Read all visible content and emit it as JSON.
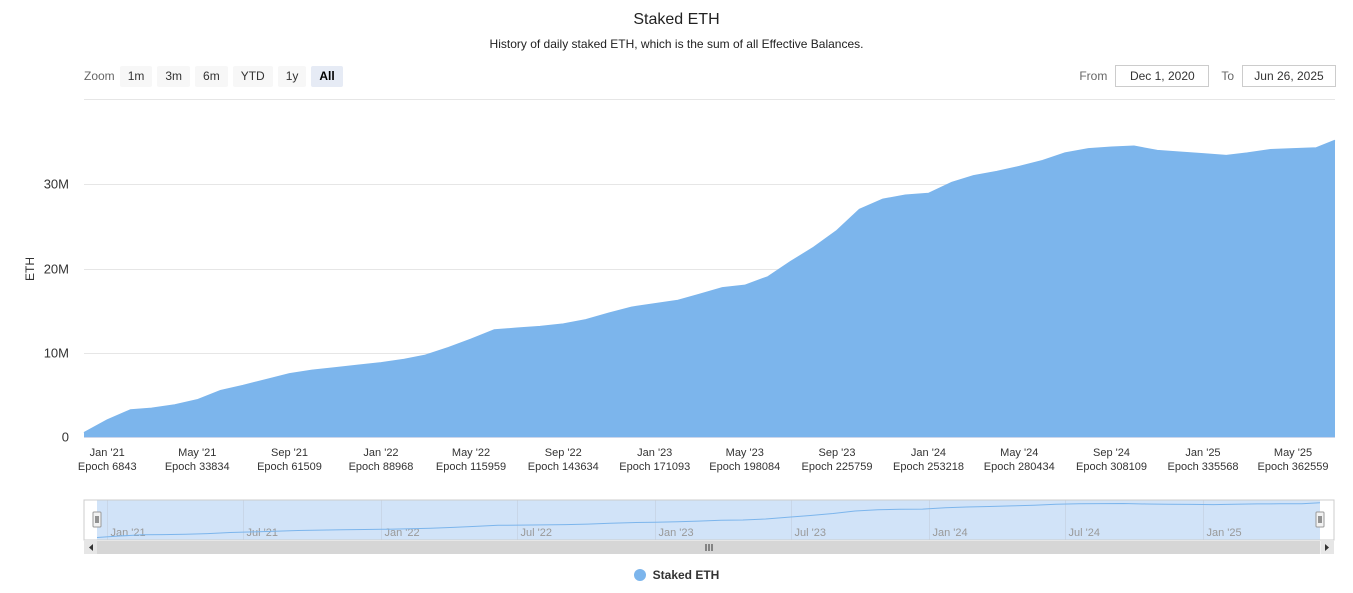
{
  "chart_data": {
    "type": "area",
    "title": "Staked ETH",
    "subtitle": "History of daily staked ETH, which is the sum of all Effective Balances.",
    "ylabel": "ETH",
    "xlabel": "",
    "ylim": [
      0,
      40000000
    ],
    "xlim": [
      "2020-12-01",
      "2025-06-26"
    ],
    "y_ticks": [
      {
        "value": 0,
        "label": "0"
      },
      {
        "value": 10000000,
        "label": "10M"
      },
      {
        "value": 20000000,
        "label": "20M"
      },
      {
        "value": 30000000,
        "label": "30M"
      }
    ],
    "x_ticks": [
      {
        "date": "2021-01-01",
        "label": "Jan '21",
        "epoch": "Epoch 6843"
      },
      {
        "date": "2021-05-01",
        "label": "May '21",
        "epoch": "Epoch 33834"
      },
      {
        "date": "2021-09-01",
        "label": "Sep '21",
        "epoch": "Epoch 61509"
      },
      {
        "date": "2022-01-01",
        "label": "Jan '22",
        "epoch": "Epoch 88968"
      },
      {
        "date": "2022-05-01",
        "label": "May '22",
        "epoch": "Epoch 115959"
      },
      {
        "date": "2022-09-01",
        "label": "Sep '22",
        "epoch": "Epoch 143634"
      },
      {
        "date": "2023-01-01",
        "label": "Jan '23",
        "epoch": "Epoch 171093"
      },
      {
        "date": "2023-05-01",
        "label": "May '23",
        "epoch": "Epoch 198084"
      },
      {
        "date": "2023-09-01",
        "label": "Sep '23",
        "epoch": "Epoch 225759"
      },
      {
        "date": "2024-01-01",
        "label": "Jan '24",
        "epoch": "Epoch 253218"
      },
      {
        "date": "2024-05-01",
        "label": "May '24",
        "epoch": "Epoch 280434"
      },
      {
        "date": "2024-09-01",
        "label": "Sep '24",
        "epoch": "Epoch 308109"
      },
      {
        "date": "2025-01-01",
        "label": "Jan '25",
        "epoch": "Epoch 335568"
      },
      {
        "date": "2025-05-01",
        "label": "May '25",
        "epoch": "Epoch 362559"
      }
    ],
    "series": [
      {
        "name": "Staked ETH",
        "color": "#7cb5ec",
        "points": [
          [
            "2020-12-01",
            500000
          ],
          [
            "2021-01-01",
            2000000
          ],
          [
            "2021-02-01",
            3200000
          ],
          [
            "2021-03-01",
            3400000
          ],
          [
            "2021-04-01",
            3800000
          ],
          [
            "2021-05-01",
            4400000
          ],
          [
            "2021-06-01",
            5500000
          ],
          [
            "2021-07-01",
            6100000
          ],
          [
            "2021-08-01",
            6800000
          ],
          [
            "2021-09-01",
            7500000
          ],
          [
            "2021-10-01",
            7900000
          ],
          [
            "2021-11-01",
            8200000
          ],
          [
            "2021-12-01",
            8500000
          ],
          [
            "2022-01-01",
            8800000
          ],
          [
            "2022-02-01",
            9200000
          ],
          [
            "2022-03-01",
            9700000
          ],
          [
            "2022-04-01",
            10600000
          ],
          [
            "2022-05-01",
            11600000
          ],
          [
            "2022-06-01",
            12700000
          ],
          [
            "2022-07-01",
            12900000
          ],
          [
            "2022-08-01",
            13100000
          ],
          [
            "2022-09-01",
            13400000
          ],
          [
            "2022-10-01",
            13900000
          ],
          [
            "2022-11-01",
            14700000
          ],
          [
            "2022-12-01",
            15400000
          ],
          [
            "2023-01-01",
            15800000
          ],
          [
            "2023-02-01",
            16200000
          ],
          [
            "2023-03-01",
            16900000
          ],
          [
            "2023-04-01",
            17700000
          ],
          [
            "2023-05-01",
            18000000
          ],
          [
            "2023-06-01",
            19000000
          ],
          [
            "2023-07-01",
            20800000
          ],
          [
            "2023-08-01",
            22500000
          ],
          [
            "2023-09-01",
            24500000
          ],
          [
            "2023-10-01",
            27000000
          ],
          [
            "2023-11-01",
            28200000
          ],
          [
            "2023-12-01",
            28700000
          ],
          [
            "2024-01-01",
            28900000
          ],
          [
            "2024-02-01",
            30200000
          ],
          [
            "2024-03-01",
            31000000
          ],
          [
            "2024-04-01",
            31500000
          ],
          [
            "2024-05-01",
            32100000
          ],
          [
            "2024-06-01",
            32800000
          ],
          [
            "2024-07-01",
            33700000
          ],
          [
            "2024-08-01",
            34200000
          ],
          [
            "2024-09-01",
            34400000
          ],
          [
            "2024-10-01",
            34500000
          ],
          [
            "2024-11-01",
            34000000
          ],
          [
            "2024-12-01",
            33800000
          ],
          [
            "2025-01-01",
            33600000
          ],
          [
            "2025-02-01",
            33400000
          ],
          [
            "2025-03-01",
            33700000
          ],
          [
            "2025-04-01",
            34100000
          ],
          [
            "2025-05-01",
            34200000
          ],
          [
            "2025-06-01",
            34300000
          ],
          [
            "2025-06-26",
            35200000
          ]
        ]
      }
    ],
    "navigator": {
      "x_ticks": [
        {
          "date": "2021-01-01",
          "label": "Jan '21"
        },
        {
          "date": "2021-07-01",
          "label": "Jul '21"
        },
        {
          "date": "2022-01-01",
          "label": "Jan '22"
        },
        {
          "date": "2022-07-01",
          "label": "Jul '22"
        },
        {
          "date": "2023-01-01",
          "label": "Jan '23"
        },
        {
          "date": "2023-07-01",
          "label": "Jul '23"
        },
        {
          "date": "2024-01-01",
          "label": "Jan '24"
        },
        {
          "date": "2024-07-01",
          "label": "Jul '24"
        },
        {
          "date": "2025-01-01",
          "label": "Jan '25"
        }
      ]
    },
    "grid": true,
    "legend": "bottom-center"
  },
  "range_selector": {
    "zoom_label": "Zoom",
    "buttons": [
      "1m",
      "3m",
      "6m",
      "YTD",
      "1y",
      "All"
    ],
    "selected": "All",
    "from_label": "From",
    "from_value": "Dec 1, 2020",
    "to_label": "To",
    "to_value": "Jun 26, 2025"
  },
  "colors": {
    "series": "#7cb5ec",
    "navigator_mask": "#cce0f7",
    "scrollbar_track": "#f2f2f2",
    "scrollbar_thumb": "#cccccc"
  }
}
